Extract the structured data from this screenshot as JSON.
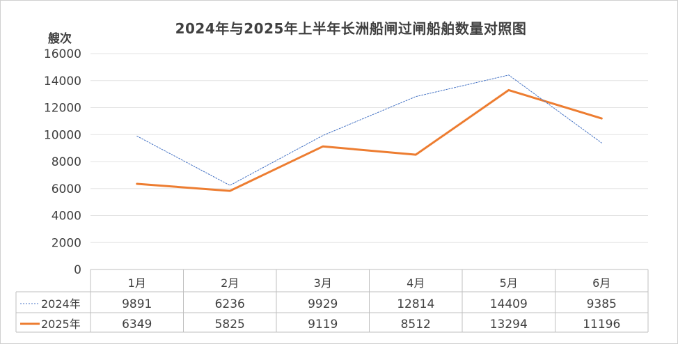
{
  "chart_data": {
    "type": "line",
    "title": "2024年与2025年上半年长洲船闸过闸船舶数量对照图",
    "ylabel": "艘次",
    "xlabel": "",
    "categories": [
      "1月",
      "2月",
      "3月",
      "4月",
      "5月",
      "6月"
    ],
    "ylim": [
      0,
      16000
    ],
    "yticks": [
      0,
      2000,
      4000,
      6000,
      8000,
      10000,
      12000,
      14000,
      16000
    ],
    "grid": true,
    "legend": "data-table-left",
    "series": [
      {
        "name": "2024年",
        "values": [
          9891,
          6236,
          9929,
          12814,
          14409,
          9385
        ],
        "color": "#4472c4",
        "style": "dotted"
      },
      {
        "name": "2025年",
        "values": [
          6349,
          5825,
          9119,
          8512,
          13294,
          11196
        ],
        "color": "#ed7d31",
        "style": "solid"
      }
    ]
  }
}
